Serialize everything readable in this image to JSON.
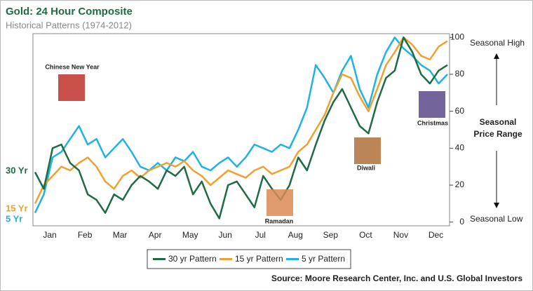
{
  "chart_data": {
    "type": "line",
    "title": "Gold: 24 Hour Composite",
    "subtitle": "Historical Patterns (1974-2012)",
    "categories": [
      null,
      null,
      "Jan",
      null,
      null,
      null,
      "Feb",
      null,
      null,
      null,
      "Mar",
      null,
      null,
      null,
      "Apr",
      null,
      null,
      null,
      "May",
      null,
      null,
      null,
      "Jun",
      null,
      null,
      null,
      "Jul",
      null,
      null,
      null,
      "Aug",
      null,
      null,
      null,
      "Sep",
      null,
      null,
      null,
      "Oct",
      null,
      null,
      null,
      "Nov",
      null,
      null,
      null,
      "Dec",
      null
    ],
    "series": [
      {
        "name": "30 yr Pattern",
        "label": "30 Yr",
        "color": "#1e6b45",
        "values": [
          27,
          18,
          40,
          42,
          32,
          28,
          15,
          12,
          5,
          15,
          12,
          20,
          25,
          22,
          18,
          28,
          25,
          30,
          15,
          22,
          10,
          2,
          20,
          22,
          15,
          8,
          25,
          18,
          12,
          20,
          35,
          28,
          42,
          55,
          65,
          72,
          62,
          52,
          48,
          65,
          78,
          82,
          100,
          92,
          80,
          75,
          82,
          85
        ]
      },
      {
        "name": "15 yr Pattern",
        "label": "15 Yr",
        "color": "#f0a030",
        "values": [
          10,
          20,
          25,
          30,
          28,
          32,
          35,
          30,
          22,
          18,
          25,
          28,
          24,
          28,
          30,
          32,
          30,
          33,
          28,
          25,
          20,
          24,
          28,
          26,
          24,
          28,
          30,
          26,
          28,
          30,
          38,
          42,
          50,
          58,
          70,
          80,
          78,
          68,
          60,
          72,
          85,
          92,
          100,
          96,
          90,
          88,
          95,
          98
        ]
      },
      {
        "name": "5 yr Pattern",
        "label": "5 Yr",
        "color": "#1fb3e0",
        "values": [
          5,
          15,
          35,
          38,
          45,
          52,
          42,
          45,
          35,
          40,
          45,
          38,
          30,
          28,
          32,
          28,
          35,
          33,
          38,
          30,
          28,
          32,
          35,
          30,
          35,
          42,
          40,
          38,
          42,
          40,
          50,
          62,
          85,
          78,
          70,
          82,
          90,
          72,
          62,
          80,
          92,
          100,
          94,
          90,
          85,
          82,
          75,
          80
        ]
      }
    ],
    "ylim": [
      -2,
      102
    ],
    "yticks": [
      0,
      20,
      40,
      60,
      80,
      100
    ],
    "axis_labels": {
      "high": "Seasonal High",
      "low": "Seasonal Low",
      "range": [
        "Seasonal",
        "Price Range"
      ]
    },
    "annotations": [
      "Chinese New Year",
      "Ramadan",
      "Diwali",
      "Christmas"
    ],
    "source_label": "Source:",
    "source": "Moore Research Center, Inc. and U.S. Global Investors"
  }
}
